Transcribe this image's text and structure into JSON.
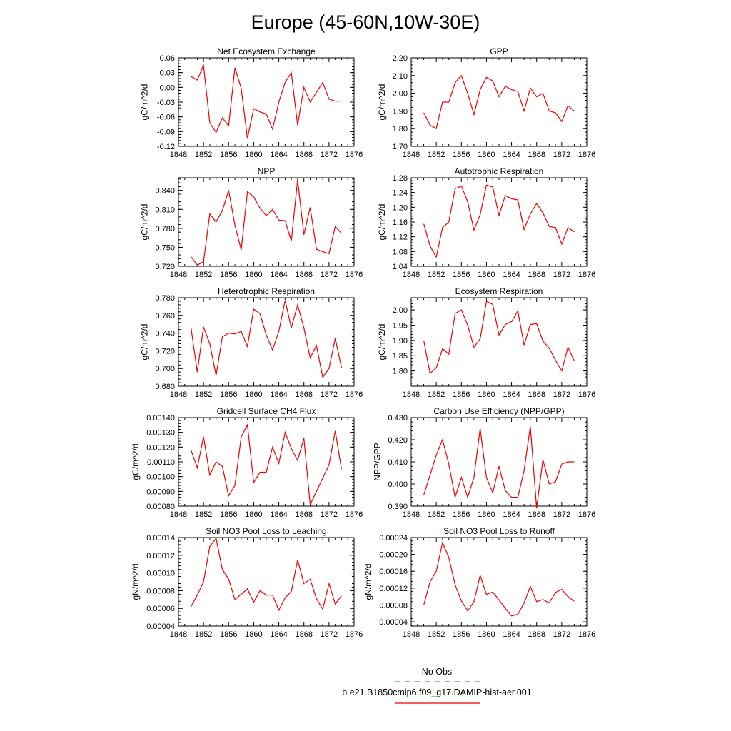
{
  "title": "Europe (45-60N,10W-30E)",
  "series_color": "#ee0000",
  "obs_color": "#6a6ad8",
  "legend": {
    "obs_label": "No Obs",
    "case_label": "b.e21.B1850cmip6.f09_g17.DAMIP-hist-aer.001"
  },
  "chart_data": [
    {
      "type": "line",
      "title": "Net Ecosystem Exchange",
      "ylabel": "gC/m^2/d",
      "xlim": [
        1848,
        1876
      ],
      "ylim": [
        -0.12,
        0.06
      ],
      "xticks": [
        "1848",
        "1852",
        "1856",
        "1860",
        "1864",
        "1868",
        "1872",
        "1876"
      ],
      "yticks": [
        "-0.12",
        "-0.09",
        "-0.06",
        "-0.03",
        "0.00",
        "0.03",
        "0.06"
      ],
      "x": [
        1850,
        1851,
        1852,
        1853,
        1854,
        1855,
        1856,
        1857,
        1858,
        1859,
        1860,
        1861,
        1862,
        1863,
        1864,
        1865,
        1866,
        1867,
        1868,
        1869,
        1870,
        1871,
        1872,
        1873,
        1874
      ],
      "values": [
        0.022,
        0.015,
        0.045,
        -0.072,
        -0.092,
        -0.062,
        -0.078,
        0.04,
        -0.002,
        -0.104,
        -0.043,
        -0.05,
        -0.054,
        -0.085,
        -0.03,
        0.01,
        0.03,
        -0.077,
        0.0,
        -0.03,
        -0.01,
        0.01,
        -0.024,
        -0.028,
        -0.028
      ]
    },
    {
      "type": "line",
      "title": "GPP",
      "ylabel": "gC/m^2/d",
      "xlim": [
        1848,
        1876
      ],
      "ylim": [
        1.7,
        2.2
      ],
      "xticks": [
        "1848",
        "1852",
        "1856",
        "1860",
        "1864",
        "1868",
        "1872",
        "1876"
      ],
      "yticks": [
        "1.70",
        "1.80",
        "1.90",
        "2.00",
        "2.10",
        "2.20"
      ],
      "x": [
        1850,
        1851,
        1852,
        1853,
        1854,
        1855,
        1856,
        1857,
        1858,
        1859,
        1860,
        1861,
        1862,
        1863,
        1864,
        1865,
        1866,
        1867,
        1868,
        1869,
        1870,
        1871,
        1872,
        1873,
        1874
      ],
      "values": [
        1.89,
        1.82,
        1.8,
        1.95,
        1.95,
        2.06,
        2.1,
        2.0,
        1.88,
        2.02,
        2.09,
        2.07,
        1.98,
        2.04,
        2.02,
        2.01,
        1.9,
        2.03,
        1.98,
        2.0,
        1.9,
        1.89,
        1.84,
        1.93,
        1.9
      ]
    },
    {
      "type": "line",
      "title": "NPP",
      "ylabel": "gC/m^2/d",
      "xlim": [
        1848,
        1876
      ],
      "ylim": [
        0.72,
        0.86
      ],
      "xticks": [
        "1848",
        "1852",
        "1856",
        "1860",
        "1864",
        "1868",
        "1872",
        "1876"
      ],
      "yticks": [
        "0.720",
        "0.750",
        "0.780",
        "0.810",
        "0.840"
      ],
      "x": [
        1850,
        1851,
        1852,
        1853,
        1854,
        1855,
        1856,
        1857,
        1858,
        1859,
        1860,
        1861,
        1862,
        1863,
        1864,
        1865,
        1866,
        1867,
        1868,
        1869,
        1870,
        1871,
        1872,
        1873,
        1874
      ],
      "values": [
        0.735,
        0.722,
        0.727,
        0.803,
        0.79,
        0.808,
        0.84,
        0.785,
        0.746,
        0.838,
        0.83,
        0.812,
        0.8,
        0.81,
        0.793,
        0.792,
        0.76,
        0.857,
        0.77,
        0.813,
        0.747,
        0.743,
        0.74,
        0.783,
        0.772
      ]
    },
    {
      "type": "line",
      "title": "Autotrophic Respiration",
      "ylabel": "gC/m^2/d",
      "xlim": [
        1848,
        1876
      ],
      "ylim": [
        1.04,
        1.28
      ],
      "xticks": [
        "1848",
        "1852",
        "1856",
        "1860",
        "1864",
        "1868",
        "1872",
        "1876"
      ],
      "yticks": [
        "1.04",
        "1.08",
        "1.12",
        "1.16",
        "1.20",
        "1.24",
        "1.28"
      ],
      "x": [
        1850,
        1851,
        1852,
        1853,
        1854,
        1855,
        1856,
        1857,
        1858,
        1859,
        1860,
        1861,
        1862,
        1863,
        1864,
        1865,
        1866,
        1867,
        1868,
        1869,
        1870,
        1871,
        1872,
        1873,
        1874
      ],
      "values": [
        1.155,
        1.095,
        1.065,
        1.145,
        1.16,
        1.25,
        1.258,
        1.215,
        1.138,
        1.18,
        1.26,
        1.255,
        1.178,
        1.232,
        1.223,
        1.22,
        1.14,
        1.182,
        1.21,
        1.185,
        1.148,
        1.145,
        1.1,
        1.145,
        1.133
      ]
    },
    {
      "type": "line",
      "title": "Heterotrophic Respiration",
      "ylabel": "gC/m^2/d",
      "xlim": [
        1848,
        1876
      ],
      "ylim": [
        0.68,
        0.78
      ],
      "xticks": [
        "1848",
        "1852",
        "1856",
        "1860",
        "1864",
        "1868",
        "1872",
        "1876"
      ],
      "yticks": [
        "0.680",
        "0.700",
        "0.720",
        "0.740",
        "0.760",
        "0.780"
      ],
      "x": [
        1850,
        1851,
        1852,
        1853,
        1854,
        1855,
        1856,
        1857,
        1858,
        1859,
        1860,
        1861,
        1862,
        1863,
        1864,
        1865,
        1866,
        1867,
        1868,
        1869,
        1870,
        1871,
        1872,
        1873,
        1874
      ],
      "values": [
        0.746,
        0.696,
        0.747,
        0.728,
        0.692,
        0.736,
        0.74,
        0.739,
        0.742,
        0.725,
        0.767,
        0.762,
        0.738,
        0.721,
        0.742,
        0.777,
        0.746,
        0.772,
        0.746,
        0.712,
        0.726,
        0.69,
        0.7,
        0.734,
        0.701
      ]
    },
    {
      "type": "line",
      "title": "Ecosystem Respiration",
      "ylabel": "gC/m^2/d",
      "xlim": [
        1848,
        1876
      ],
      "ylim": [
        1.75,
        2.04
      ],
      "xticks": [
        "1848",
        "1852",
        "1856",
        "1860",
        "1864",
        "1868",
        "1872",
        "1876"
      ],
      "yticks": [
        "1.80",
        "1.85",
        "1.90",
        "1.95",
        "2.00"
      ],
      "x": [
        1850,
        1851,
        1852,
        1853,
        1854,
        1855,
        1856,
        1857,
        1858,
        1859,
        1860,
        1861,
        1862,
        1863,
        1864,
        1865,
        1866,
        1867,
        1868,
        1869,
        1870,
        1871,
        1872,
        1873,
        1874
      ],
      "values": [
        1.9,
        1.792,
        1.81,
        1.873,
        1.855,
        1.988,
        2.0,
        1.95,
        1.878,
        1.905,
        2.028,
        2.018,
        1.918,
        1.952,
        1.962,
        1.997,
        1.885,
        1.952,
        1.955,
        1.898,
        1.875,
        1.835,
        1.8,
        1.878,
        1.833
      ]
    },
    {
      "type": "line",
      "title": "Gridcell Surface CH4 Flux",
      "ylabel": "gC/m^2/d",
      "xlim": [
        1848,
        1876
      ],
      "ylim": [
        0.0008,
        0.0014
      ],
      "xticks": [
        "1848",
        "1852",
        "1856",
        "1860",
        "1864",
        "1868",
        "1872",
        "1876"
      ],
      "yticks": [
        "0.00080",
        "0.00090",
        "0.00100",
        "0.00110",
        "0.00120",
        "0.00130",
        "0.00140"
      ],
      "x": [
        1850,
        1851,
        1852,
        1853,
        1854,
        1855,
        1856,
        1857,
        1858,
        1859,
        1860,
        1861,
        1862,
        1863,
        1864,
        1865,
        1866,
        1867,
        1868,
        1869,
        1870,
        1871,
        1872,
        1873,
        1874
      ],
      "values": [
        0.00118,
        0.00106,
        0.00127,
        0.00101,
        0.0011,
        0.00107,
        0.00087,
        0.00094,
        0.00127,
        0.00135,
        0.00096,
        0.00103,
        0.00103,
        0.0012,
        0.00109,
        0.0013,
        0.00119,
        0.00111,
        0.00126,
        0.00081,
        0.0009,
        0.00099,
        0.00108,
        0.00131,
        0.00105
      ]
    },
    {
      "type": "line",
      "title": "Carbon Use Efficiency (NPP/GPP)",
      "ylabel": "NPP/GPP",
      "xlim": [
        1848,
        1876
      ],
      "ylim": [
        0.39,
        0.43
      ],
      "xticks": [
        "1848",
        "1852",
        "1856",
        "1860",
        "1864",
        "1868",
        "1872",
        "1876"
      ],
      "yticks": [
        "0.390",
        "0.400",
        "0.410",
        "0.420",
        "0.430"
      ],
      "x": [
        1850,
        1851,
        1852,
        1853,
        1854,
        1855,
        1856,
        1857,
        1858,
        1859,
        1860,
        1861,
        1862,
        1863,
        1864,
        1865,
        1866,
        1867,
        1868,
        1869,
        1870,
        1871,
        1872,
        1873,
        1874
      ],
      "values": [
        0.395,
        0.404,
        0.413,
        0.42,
        0.409,
        0.394,
        0.403,
        0.394,
        0.403,
        0.425,
        0.403,
        0.396,
        0.408,
        0.397,
        0.394,
        0.394,
        0.406,
        0.426,
        0.389,
        0.411,
        0.4,
        0.401,
        0.409,
        0.41,
        0.41
      ]
    },
    {
      "type": "line",
      "title": "Soil NO3 Pool Loss to Leaching",
      "ylabel": "gN/m^2/d",
      "xlim": [
        1848,
        1876
      ],
      "ylim": [
        4e-05,
        0.00014
      ],
      "xticks": [
        "1848",
        "1852",
        "1856",
        "1860",
        "1864",
        "1868",
        "1872",
        "1876"
      ],
      "yticks": [
        "0.00004",
        "0.00006",
        "0.00008",
        "0.00010",
        "0.00012",
        "0.00014"
      ],
      "x": [
        1850,
        1851,
        1852,
        1853,
        1854,
        1855,
        1856,
        1857,
        1858,
        1859,
        1860,
        1861,
        1862,
        1863,
        1864,
        1865,
        1866,
        1867,
        1868,
        1869,
        1870,
        1871,
        1872,
        1873,
        1874
      ],
      "values": [
        6.2e-05,
        7.5e-05,
        9e-05,
        0.00013,
        0.000139,
        0.000104,
        9.3e-05,
        7e-05,
        7.6e-05,
        8.2e-05,
        6.7e-05,
        8e-05,
        7.5e-05,
        7.5e-05,
        5.8e-05,
        7.2e-05,
        7.9e-05,
        0.000115,
        8.8e-05,
        9.3e-05,
        7.1e-05,
        5.9e-05,
        8.8e-05,
        6.5e-05,
        7.4e-05
      ]
    },
    {
      "type": "line",
      "title": "Soil NO3 Pool Loss to Runoff",
      "ylabel": "gN/m^2/d",
      "xlim": [
        1848,
        1876
      ],
      "ylim": [
        3e-05,
        0.00024
      ],
      "xticks": [
        "1848",
        "1852",
        "1856",
        "1860",
        "1864",
        "1868",
        "1872",
        "1876"
      ],
      "yticks": [
        "0.00004",
        "0.00008",
        "0.00012",
        "0.00016",
        "0.00020",
        "0.00024"
      ],
      "x": [
        1850,
        1851,
        1852,
        1853,
        1854,
        1855,
        1856,
        1857,
        1858,
        1859,
        1860,
        1861,
        1862,
        1863,
        1864,
        1865,
        1866,
        1867,
        1868,
        1869,
        1870,
        1871,
        1872,
        1873,
        1874
      ],
      "values": [
        8e-05,
        0.000135,
        0.00016,
        0.000228,
        0.000193,
        0.000128,
        9e-05,
        6.6e-05,
        8.8e-05,
        0.00015,
        0.000105,
        0.000111,
        9.2e-05,
        7.2e-05,
        5.4e-05,
        5.8e-05,
        8.5e-05,
        0.000124,
        8.8e-05,
        9.3e-05,
        8.5e-05,
        0.00011,
        0.000117,
        0.0001,
        8.9e-05
      ]
    }
  ]
}
